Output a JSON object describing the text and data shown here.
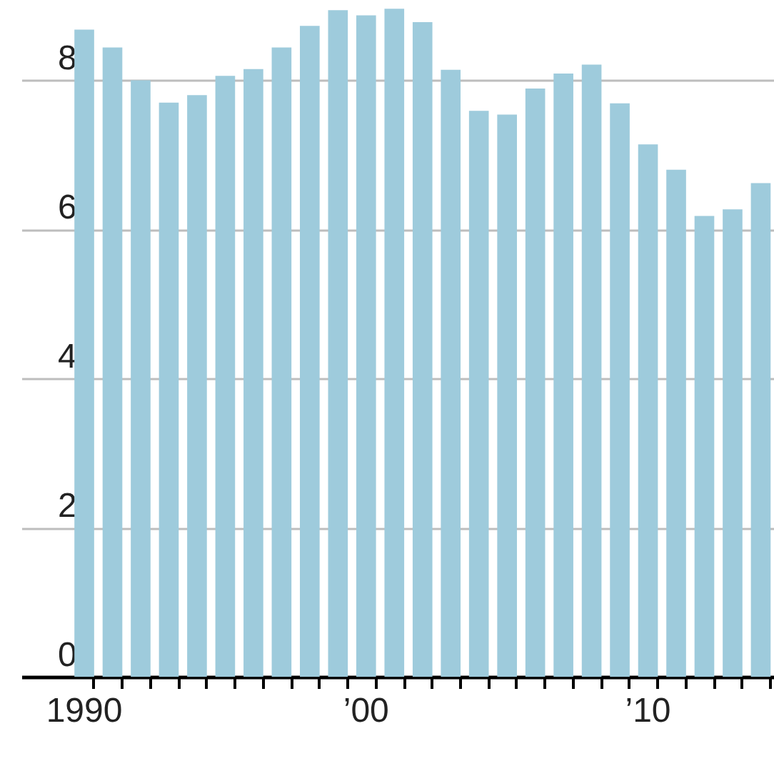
{
  "chart_data": {
    "type": "bar",
    "categories": [
      "1990",
      null,
      null,
      null,
      null,
      null,
      null,
      null,
      null,
      null,
      "’00",
      null,
      null,
      null,
      null,
      null,
      null,
      null,
      null,
      null,
      "’10",
      null,
      null,
      null,
      null
    ],
    "values": [
      8.68,
      8.44,
      8.0,
      7.7,
      7.8,
      8.06,
      8.15,
      8.44,
      8.73,
      8.94,
      8.87,
      8.96,
      8.78,
      8.14,
      7.59,
      7.54,
      7.89,
      8.09,
      8.21,
      7.69,
      7.14,
      6.8,
      6.18,
      6.27,
      6.62
    ],
    "color": "#9ecbdc",
    "ylim": [
      0,
      9
    ],
    "yticks": [
      0,
      2,
      4,
      6,
      8
    ],
    "grid": "y"
  }
}
